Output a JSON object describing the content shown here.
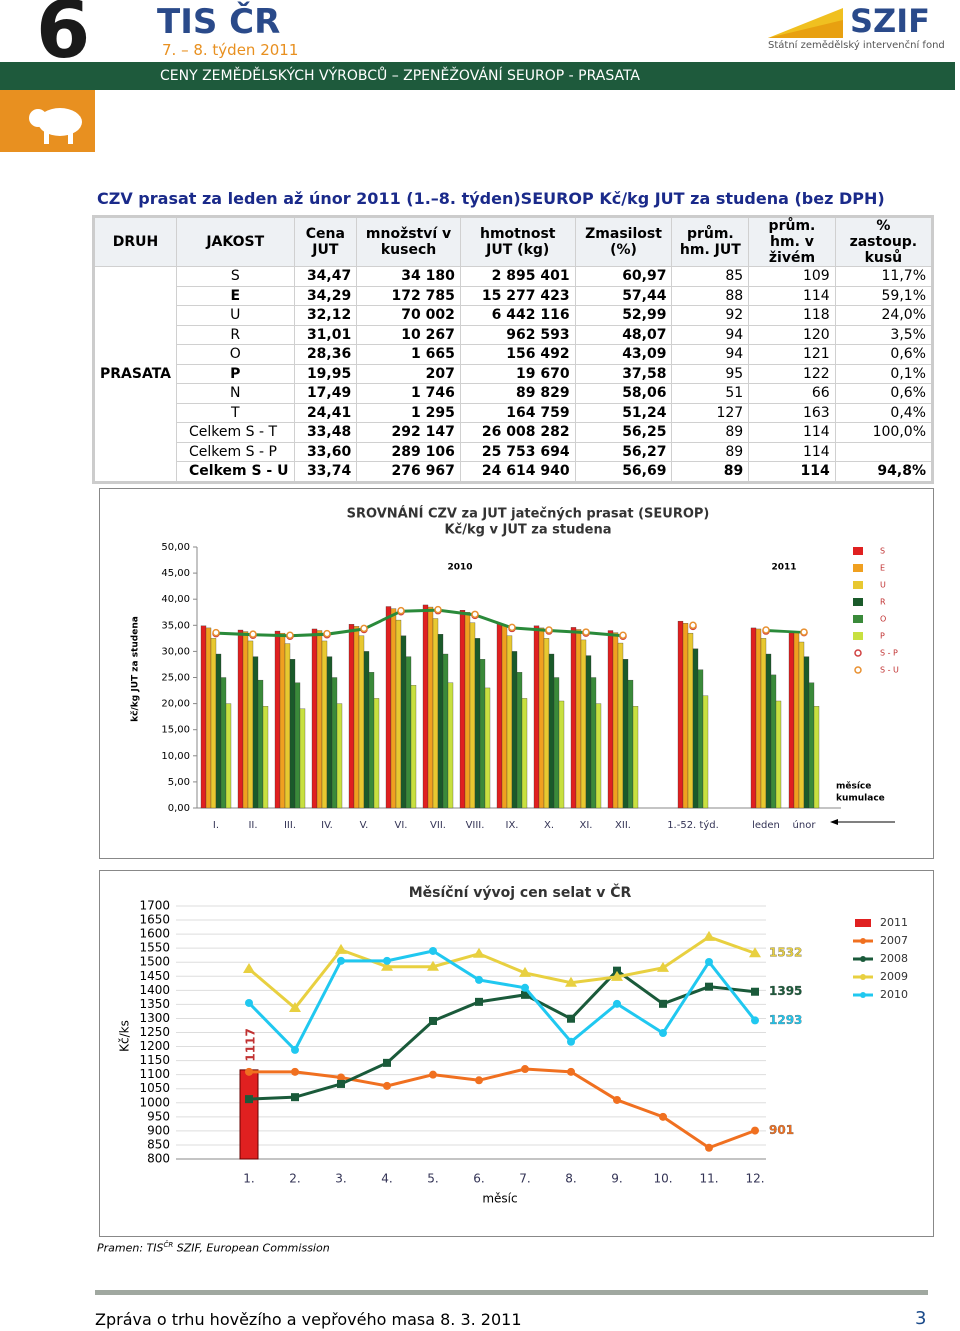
{
  "header": {
    "number": "6",
    "brand": "TIS ČR",
    "week": "7. – 8. týden 2011",
    "logo": "SZIF",
    "logo_sub": "Státní zemědělský intervenční fond",
    "band": "CENY ZEMĚDĚLSKÝCH VÝROBCŮ – ZPENĚŽOVÁNÍ SEUROP - PRASATA"
  },
  "section_title": "CZV prasat za leden až únor 2011 (1.–8. týden)SEUROP Kč/kg JUT za studena (bez DPH)",
  "table": {
    "columns": [
      "DRUH",
      "JAKOST",
      "Cena JUT",
      "množství v kusech",
      "hmotnost JUT (kg)",
      "Zmasilost (%)",
      "prům. hm. JUT",
      "prům. hm. v živém",
      "% zastoup. kusů"
    ],
    "druh": "PRASATA",
    "rows": [
      [
        "S",
        "34,47",
        "34 180",
        "2 895 401",
        "60,97",
        "85",
        "109",
        "11,7%"
      ],
      [
        "E",
        "34,29",
        "172 785",
        "15 277 423",
        "57,44",
        "88",
        "114",
        "59,1%"
      ],
      [
        "U",
        "32,12",
        "70 002",
        "6 442 116",
        "52,99",
        "92",
        "118",
        "24,0%"
      ],
      [
        "R",
        "31,01",
        "10 267",
        "962 593",
        "48,07",
        "94",
        "120",
        "3,5%"
      ],
      [
        "O",
        "28,36",
        "1 665",
        "156 492",
        "43,09",
        "94",
        "121",
        "0,6%"
      ],
      [
        "P",
        "19,95",
        "207",
        "19 670",
        "37,58",
        "95",
        "122",
        "0,1%"
      ],
      [
        "N",
        "17,49",
        "1 746",
        "89 829",
        "58,06",
        "51",
        "66",
        "0,6%"
      ],
      [
        "T",
        "24,41",
        "1 295",
        "164 759",
        "51,24",
        "127",
        "163",
        "0,4%"
      ],
      [
        "Celkem S - T",
        "33,48",
        "292 147",
        "26 008 282",
        "56,25",
        "89",
        "114",
        "100,0%"
      ],
      [
        "Celkem S - P",
        "33,60",
        "289 106",
        "25 753 694",
        "56,27",
        "89",
        "114",
        null
      ],
      [
        "Celkem S - U",
        "33,74",
        "276 967",
        "24 614 940",
        "56,69",
        "89",
        "114",
        "94,8%"
      ]
    ]
  },
  "chart_data": [
    {
      "type": "bar",
      "title": [
        "SROVNÁNÍ  CZV za JUT jatečných prasat (SEUROP)",
        "Kč/kg v JUT za studena"
      ],
      "y_label": "kč/kg JUT za studena",
      "annotations": [
        "2010",
        "2011",
        "měsíce",
        "kumulace"
      ],
      "categories": [
        "I.",
        "II.",
        "III.",
        "IV.",
        "V.",
        "VI.",
        "VII.",
        "VIII.",
        "IX.",
        "X.",
        "XI.",
        "XII.",
        "1.-52. týd.",
        "leden",
        "únor"
      ],
      "ylim": [
        0,
        50
      ],
      "yticks": [
        {
          "value": 0,
          "label": "0,00"
        },
        {
          "value": 5,
          "label": "5,00"
        },
        {
          "value": 10,
          "label": "10,00"
        },
        {
          "value": 15,
          "label": "15,00"
        },
        {
          "value": 20,
          "label": "20,00"
        },
        {
          "value": 25,
          "label": "25,00"
        },
        {
          "value": 30,
          "label": "30,00"
        },
        {
          "value": 35,
          "label": "35,00"
        },
        {
          "value": 40,
          "label": "40,00"
        },
        {
          "value": 45,
          "label": "45,00"
        },
        {
          "value": 50,
          "label": "50,00"
        }
      ],
      "series": [
        {
          "name": "S",
          "color": "#e02020",
          "values": [
            34.9,
            34.1,
            33.9,
            34.3,
            35.2,
            38.6,
            38.9,
            37.9,
            35.4,
            34.9,
            34.6,
            34.0,
            35.8,
            34.5,
            33.9
          ]
        },
        {
          "name": "E",
          "color": "#f0a020",
          "values": [
            34.5,
            33.8,
            33.5,
            34.0,
            34.8,
            38.2,
            38.5,
            37.5,
            35.0,
            34.5,
            34.2,
            33.6,
            35.4,
            34.3,
            33.7
          ]
        },
        {
          "name": "U",
          "color": "#e8c830",
          "values": [
            32.5,
            32.0,
            31.5,
            32.0,
            33.0,
            36.0,
            36.3,
            35.5,
            33.0,
            32.5,
            32.2,
            31.6,
            33.5,
            32.5,
            31.8
          ]
        },
        {
          "name": "R",
          "color": "#1a5a2a",
          "values": [
            29.5,
            29.0,
            28.5,
            29.0,
            30.0,
            33.0,
            33.3,
            32.5,
            30.0,
            29.5,
            29.2,
            28.5,
            30.5,
            29.5,
            29.0
          ]
        },
        {
          "name": "O",
          "color": "#3a8a3a",
          "values": [
            25.0,
            24.5,
            24.0,
            25.0,
            26.0,
            29.0,
            29.5,
            28.5,
            26.0,
            25.0,
            25.0,
            24.5,
            26.5,
            25.5,
            24.0
          ]
        },
        {
          "name": "P",
          "color": "#c8e040",
          "values": [
            20.0,
            19.5,
            19.0,
            20.0,
            21.0,
            23.5,
            24.0,
            23.0,
            21.0,
            20.5,
            20.0,
            19.5,
            21.5,
            20.5,
            19.5
          ]
        },
        {
          "name": "S - P",
          "type": "line",
          "color": "#d04040",
          "values": [
            33.4,
            33.1,
            32.9,
            33.2,
            34.2,
            37.6,
            37.8,
            36.9,
            34.4,
            33.9,
            33.5,
            32.9,
            34.8,
            33.9,
            33.6
          ]
        },
        {
          "name": "S - U",
          "type": "line",
          "color": "#e89030",
          "values": [
            33.6,
            33.3,
            33.1,
            33.4,
            34.4,
            37.8,
            38.0,
            37.1,
            34.6,
            34.1,
            33.7,
            33.1,
            35.0,
            34.1,
            33.7
          ]
        }
      ]
    },
    {
      "type": "line",
      "title": "Měsíční vývoj cen selat  v ČR",
      "x_label": "měsíc",
      "y_label": "Kč/ks",
      "categories": [
        "1.",
        "2.",
        "3.",
        "4.",
        "5.",
        "6.",
        "7.",
        "8.",
        "9.",
        "10.",
        "11.",
        "12."
      ],
      "ylim": [
        800,
        1700
      ],
      "yticks": [
        800,
        850,
        900,
        950,
        1000,
        1050,
        1100,
        1150,
        1200,
        1250,
        1300,
        1350,
        1400,
        1450,
        1500,
        1550,
        1600,
        1650,
        1700
      ],
      "series": [
        {
          "name": "2011",
          "type": "bar",
          "color": "#e02020",
          "values": [
            1117,
            null,
            null,
            null,
            null,
            null,
            null,
            null,
            null,
            null,
            null,
            null
          ]
        },
        {
          "name": "2007",
          "color": "#f07020",
          "marker": "circle",
          "values": [
            1110,
            1110,
            1090,
            1060,
            1100,
            1080,
            1120,
            1110,
            1010,
            950,
            840,
            901
          ]
        },
        {
          "name": "2008",
          "color": "#1a5a3a",
          "marker": "square",
          "values": [
            1013,
            1020,
            1067,
            1142,
            1291,
            1359,
            1384,
            1299,
            1470,
            1352,
            1413,
            1395
          ]
        },
        {
          "name": "2009",
          "color": "#e8d040",
          "marker": "triangle",
          "values": [
            1476,
            1337,
            1544,
            1484,
            1484,
            1530,
            1462,
            1427,
            1448,
            1480,
            1590,
            1532
          ]
        },
        {
          "name": "2010",
          "color": "#20c8f0",
          "marker": "circle",
          "values": [
            1355,
            1188,
            1505,
            1505,
            1540,
            1437,
            1409,
            1217,
            1352,
            1248,
            1501,
            1293
          ]
        }
      ]
    }
  ],
  "source": [
    "Pramen: TIS",
    "ČR",
    " SZIF, European Commission"
  ],
  "footer": {
    "text": "Zpráva o trhu hovězího a vepřového masa 8. 3. 2011",
    "page": "3"
  }
}
